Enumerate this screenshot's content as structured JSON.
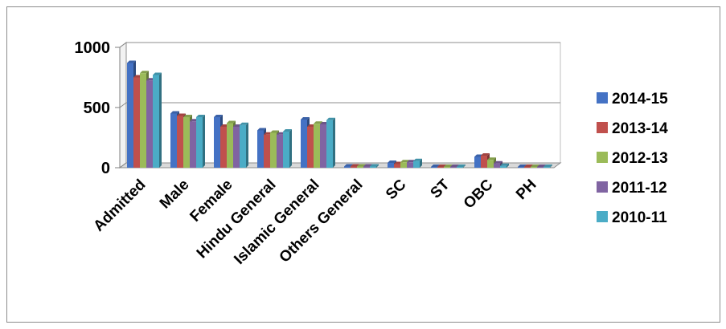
{
  "chart_data": {
    "type": "bar",
    "title": "",
    "xlabel": "",
    "ylabel": "",
    "ylim": [
      0,
      1000
    ],
    "yticks": [
      0,
      500,
      1000
    ],
    "grid": true,
    "legend_position": "right",
    "categories": [
      "Admitted",
      "Male",
      "Female",
      "Hindu General",
      "Islamic General",
      "Others General",
      "SC",
      "ST",
      "OBC",
      "PH"
    ],
    "series": [
      {
        "name": "2014-15",
        "color": "#4472C4",
        "values": [
          870,
          450,
          420,
          310,
          400,
          10,
          40,
          5,
          90,
          5
        ]
      },
      {
        "name": "2013-14",
        "color": "#C0504D",
        "values": [
          750,
          430,
          340,
          275,
          340,
          10,
          30,
          5,
          100,
          5
        ]
      },
      {
        "name": "2012-13",
        "color": "#9BBB59",
        "values": [
          785,
          420,
          370,
          290,
          365,
          10,
          45,
          5,
          65,
          5
        ]
      },
      {
        "name": "2011-12",
        "color": "#8064A2",
        "values": [
          725,
          385,
          340,
          275,
          360,
          10,
          45,
          5,
          35,
          5
        ]
      },
      {
        "name": "2010-11",
        "color": "#4BACC6",
        "values": [
          770,
          420,
          355,
          300,
          395,
          10,
          55,
          5,
          15,
          5
        ]
      }
    ]
  }
}
